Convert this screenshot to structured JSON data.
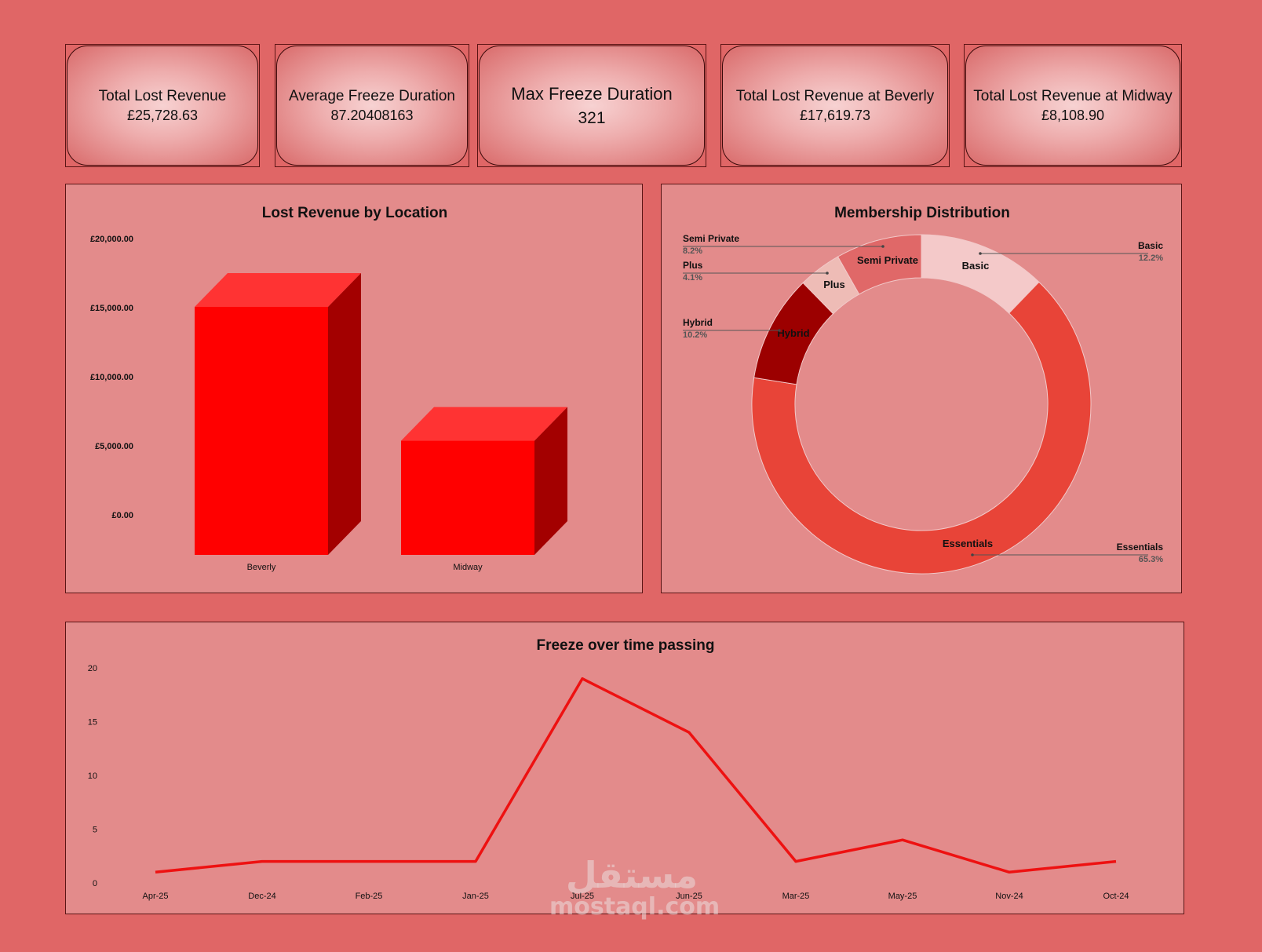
{
  "kpis": [
    {
      "title": "Total Lost Revenue",
      "value": "£25,728.63"
    },
    {
      "title": "Average Freeze Duration",
      "value": "87.20408163"
    },
    {
      "title": "Max Freeze Duration",
      "value": "321"
    },
    {
      "title": "Total Lost Revenue at Beverly",
      "value": "£17,619.73"
    },
    {
      "title": "Total Lost Revenue at Midway",
      "value": "£8,108.90"
    }
  ],
  "colors": {
    "background": "#e06666",
    "panel": "#e38b8b",
    "bar_front": "#ff0000",
    "bar_top": "#ff3333",
    "bar_side": "#a30000",
    "line": "#ee1111"
  },
  "watermark": {
    "arabic": "مستقل",
    "latin": "mostaql.com"
  },
  "chart_data": [
    {
      "type": "bar",
      "title": "Lost Revenue by Location",
      "categories": [
        "Beverly",
        "Midway"
      ],
      "values": [
        17619.73,
        8108.9
      ],
      "yticks": [
        "£20,000.00",
        "£15,000.00",
        "£10,000.00",
        "£5,000.00",
        "£0.00"
      ],
      "ylim": [
        0,
        20000
      ],
      "style": "3d"
    },
    {
      "type": "pie",
      "title": "Membership Distribution",
      "donut": true,
      "slices": [
        {
          "name": "Basic",
          "pct": "12.2%",
          "value": 12.2,
          "color": "#f4c9c9"
        },
        {
          "name": "Essentials",
          "pct": "65.3%",
          "value": 65.3,
          "color": "#e84438"
        },
        {
          "name": "Hybrid",
          "pct": "10.2%",
          "value": 10.2,
          "color": "#9c0000"
        },
        {
          "name": "Plus",
          "pct": "4.1%",
          "value": 4.1,
          "color": "#eebcb6"
        },
        {
          "name": "Semi Private",
          "pct": "8.2%",
          "value": 8.2,
          "color": "#e06868"
        }
      ]
    },
    {
      "type": "line",
      "title": "Freeze over time passing",
      "categories": [
        "Apr-25",
        "Dec-24",
        "Feb-25",
        "Jan-25",
        "Jul-25",
        "Jun-25",
        "Mar-25",
        "May-25",
        "Nov-24",
        "Oct-24"
      ],
      "values": [
        1,
        2,
        2,
        2,
        19,
        14,
        2,
        4,
        1,
        2
      ],
      "yticks": [
        "20",
        "15",
        "10",
        "5",
        "0"
      ],
      "ylim": [
        0,
        20
      ]
    }
  ]
}
